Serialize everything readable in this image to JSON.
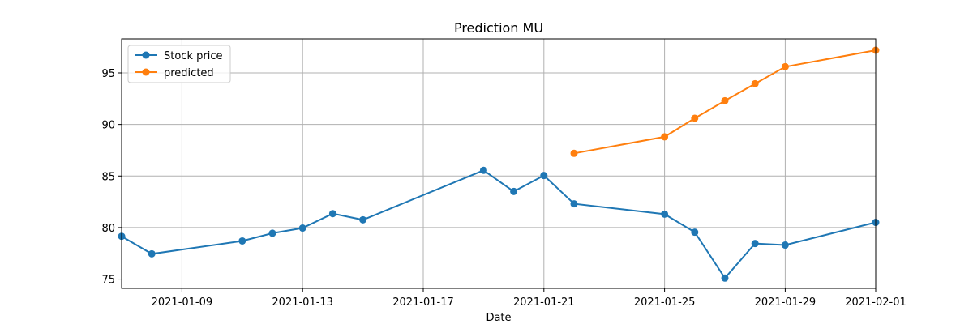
{
  "chart_data": {
    "type": "line",
    "title": "Prediction MU",
    "xlabel": "Date",
    "ylabel": "",
    "x_axis_type": "date",
    "xlim": [
      "2021-01-07",
      "2021-02-01"
    ],
    "ylim": [
      74.1,
      98.3
    ],
    "x_ticks": [
      "2021-01-09",
      "2021-01-13",
      "2021-01-17",
      "2021-01-21",
      "2021-01-25",
      "2021-01-29",
      "2021-02-01"
    ],
    "y_ticks": [
      75,
      80,
      85,
      90,
      95
    ],
    "grid": true,
    "legend_position": "top-left",
    "series": [
      {
        "name": "Stock price",
        "color": "#1f77b4",
        "marker": "circle",
        "points": [
          {
            "x": "2021-01-07",
            "y": 79.15
          },
          {
            "x": "2021-01-08",
            "y": 77.45
          },
          {
            "x": "2021-01-11",
            "y": 78.7
          },
          {
            "x": "2021-01-12",
            "y": 79.45
          },
          {
            "x": "2021-01-13",
            "y": 79.95
          },
          {
            "x": "2021-01-14",
            "y": 81.35
          },
          {
            "x": "2021-01-15",
            "y": 80.75
          },
          {
            "x": "2021-01-19",
            "y": 85.55
          },
          {
            "x": "2021-01-20",
            "y": 83.5
          },
          {
            "x": "2021-01-21",
            "y": 85.05
          },
          {
            "x": "2021-01-22",
            "y": 82.3
          },
          {
            "x": "2021-01-25",
            "y": 81.3
          },
          {
            "x": "2021-01-26",
            "y": 79.55
          },
          {
            "x": "2021-01-27",
            "y": 75.1
          },
          {
            "x": "2021-01-28",
            "y": 78.45
          },
          {
            "x": "2021-01-29",
            "y": 78.3
          },
          {
            "x": "2021-02-01",
            "y": 80.5
          }
        ]
      },
      {
        "name": "predicted",
        "color": "#ff7f0e",
        "marker": "circle",
        "points": [
          {
            "x": "2021-01-22",
            "y": 87.2
          },
          {
            "x": "2021-01-25",
            "y": 88.8
          },
          {
            "x": "2021-01-26",
            "y": 90.6
          },
          {
            "x": "2021-01-27",
            "y": 92.3
          },
          {
            "x": "2021-01-28",
            "y": 93.95
          },
          {
            "x": "2021-01-29",
            "y": 95.6
          },
          {
            "x": "2021-02-01",
            "y": 97.2
          }
        ]
      }
    ]
  }
}
